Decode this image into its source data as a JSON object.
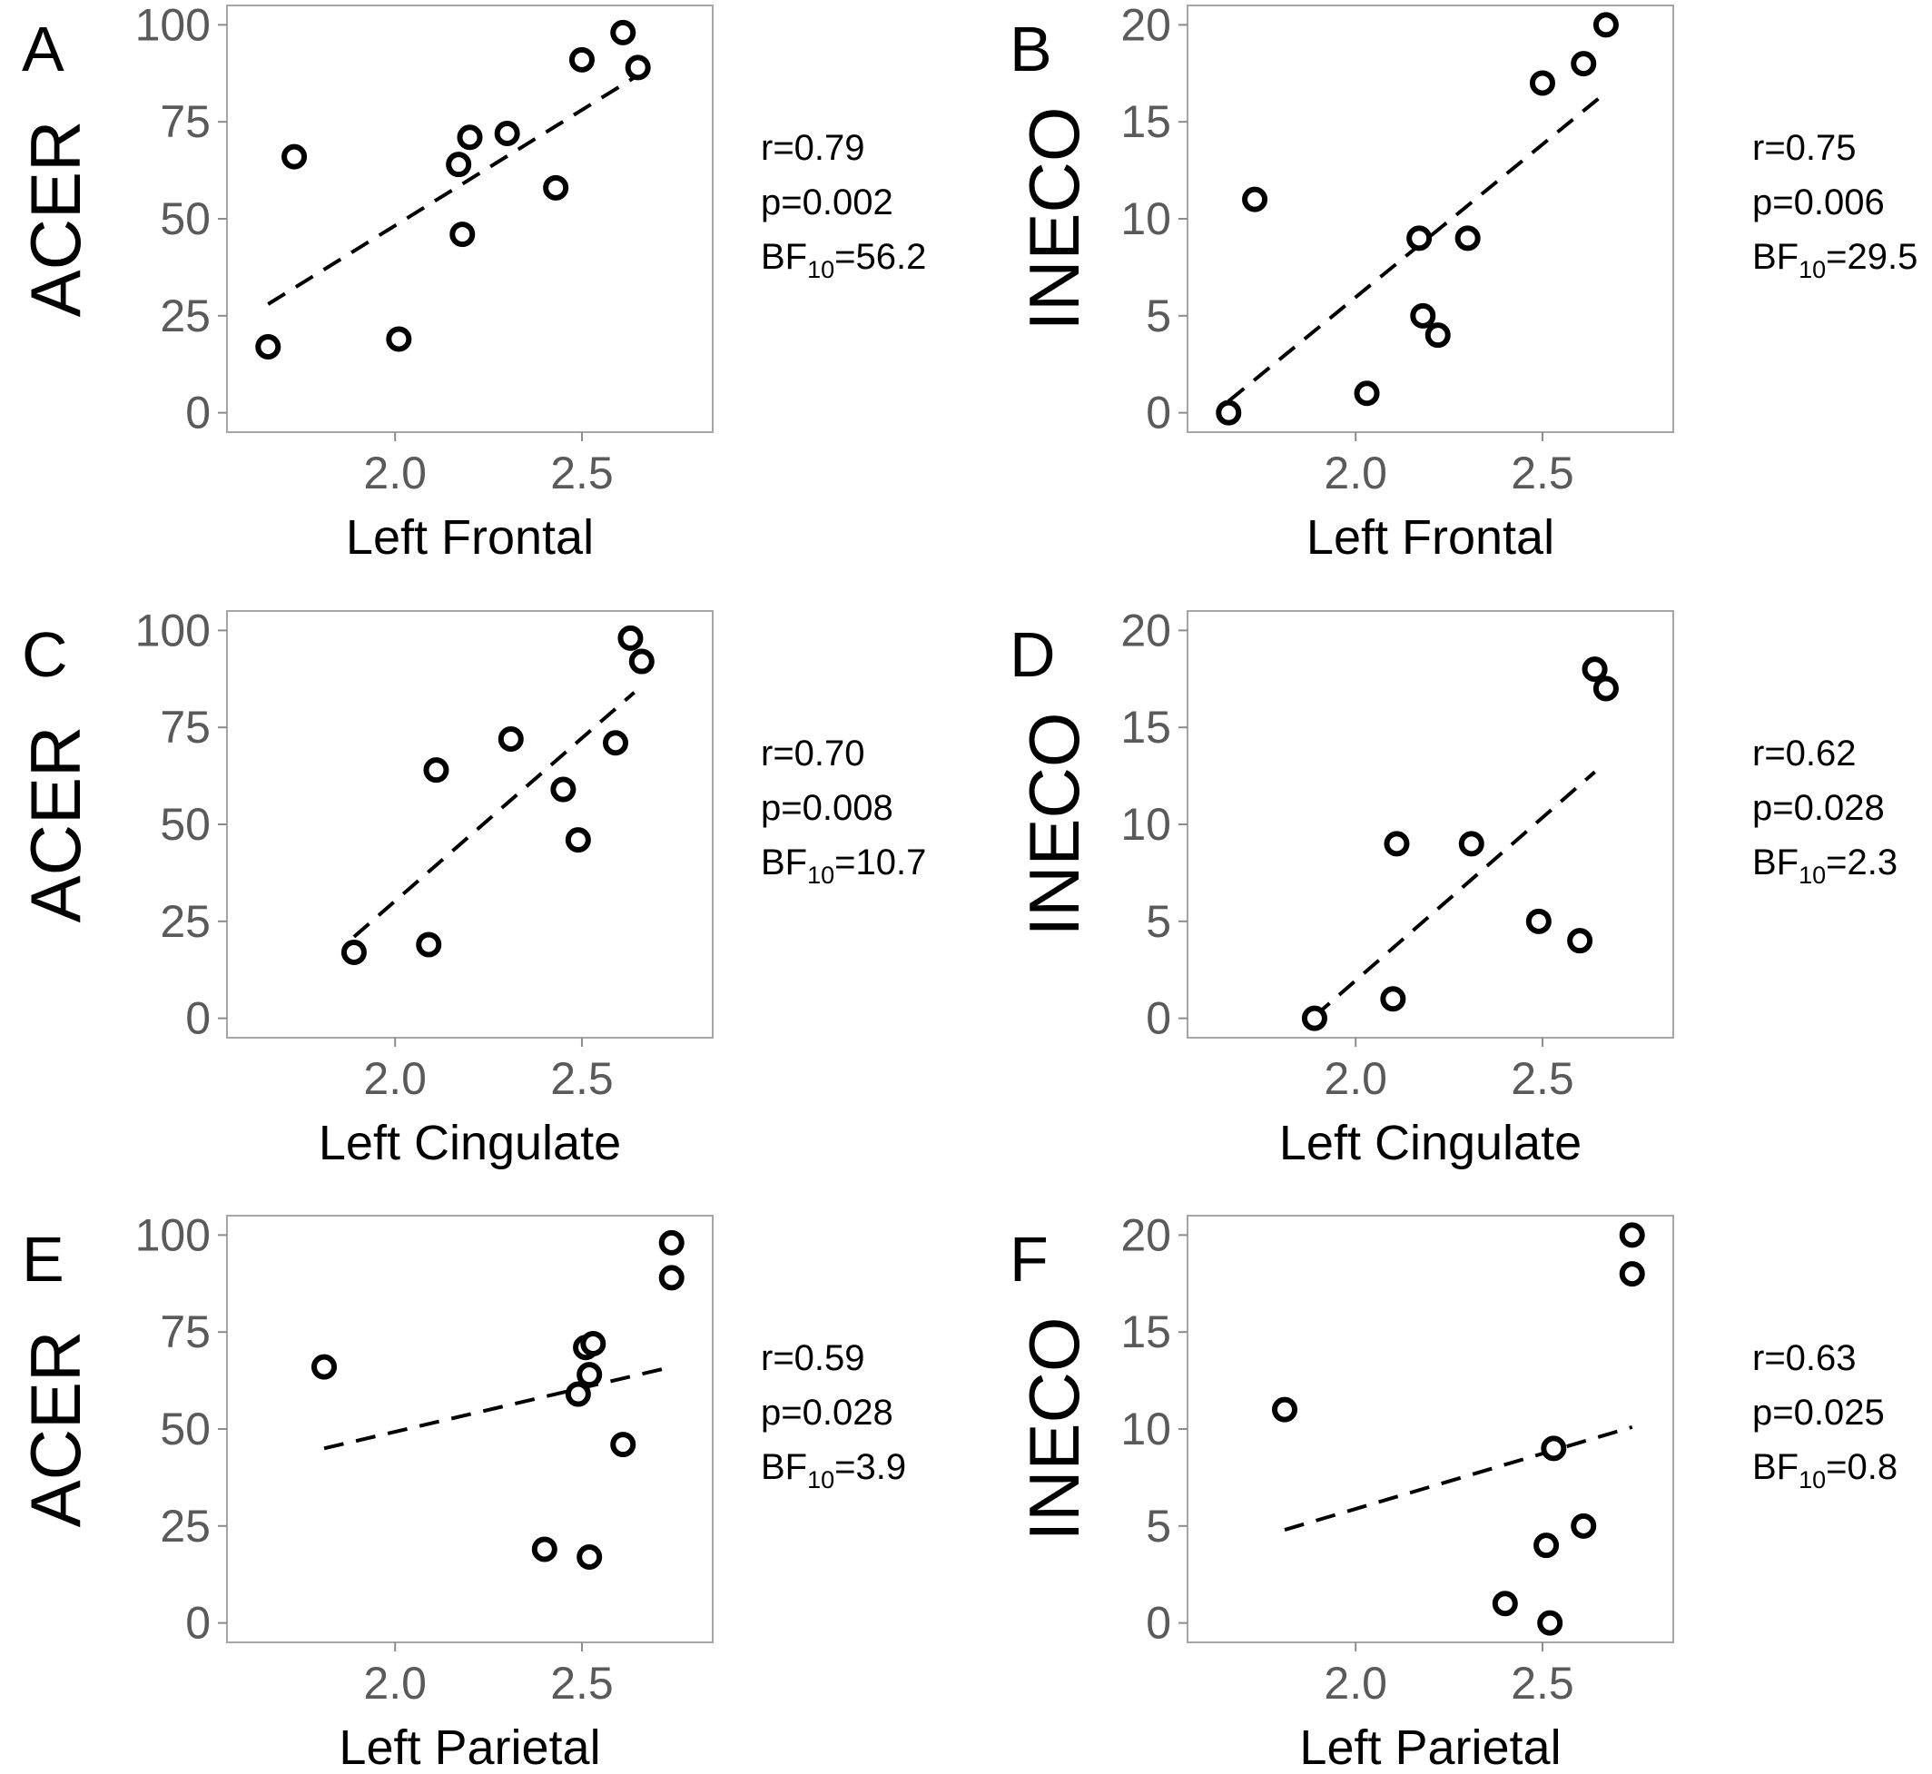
{
  "chart_data": [
    {
      "type": "scatter",
      "panel": "A",
      "ylabel": "ACER",
      "xlabel": "Left Frontal",
      "xlim": [
        1.55,
        2.85
      ],
      "ylim": [
        -5,
        105
      ],
      "xticks": [
        2.0,
        2.5
      ],
      "xtick_labels": [
        "2.0",
        "2.5"
      ],
      "yticks": [
        0,
        25,
        50,
        75,
        100
      ],
      "ytick_labels": [
        "0",
        "25",
        "50",
        "75",
        "100"
      ],
      "grid": false,
      "points": [
        {
          "x": 1.66,
          "y": 17
        },
        {
          "x": 1.73,
          "y": 66
        },
        {
          "x": 2.01,
          "y": 19
        },
        {
          "x": 2.17,
          "y": 64
        },
        {
          "x": 2.18,
          "y": 46
        },
        {
          "x": 2.2,
          "y": 71
        },
        {
          "x": 2.3,
          "y": 72
        },
        {
          "x": 2.43,
          "y": 58
        },
        {
          "x": 2.5,
          "y": 91
        },
        {
          "x": 2.61,
          "y": 98
        },
        {
          "x": 2.65,
          "y": 89
        }
      ],
      "fit": {
        "x": [
          1.66,
          2.65
        ],
        "y": [
          28,
          87
        ]
      },
      "stats": {
        "r": "r=0.79",
        "p": "p=0.002",
        "bf_prefix": "BF",
        "bf_sub": "10",
        "bf_value": "=56.2"
      }
    },
    {
      "type": "scatter",
      "panel": "B",
      "ylabel": "INECO",
      "xlabel": "Left Frontal",
      "xlim": [
        1.55,
        2.85
      ],
      "ylim": [
        -1,
        21
      ],
      "xticks": [
        2.0,
        2.5
      ],
      "xtick_labels": [
        "2.0",
        "2.5"
      ],
      "yticks": [
        0,
        5,
        10,
        15,
        20
      ],
      "ytick_labels": [
        "0",
        "5",
        "10",
        "15",
        "20"
      ],
      "grid": false,
      "points": [
        {
          "x": 1.66,
          "y": 0
        },
        {
          "x": 1.73,
          "y": 11
        },
        {
          "x": 2.03,
          "y": 1
        },
        {
          "x": 2.17,
          "y": 9
        },
        {
          "x": 2.18,
          "y": 5
        },
        {
          "x": 2.22,
          "y": 4
        },
        {
          "x": 2.3,
          "y": 9
        },
        {
          "x": 2.5,
          "y": 17
        },
        {
          "x": 2.61,
          "y": 18
        },
        {
          "x": 2.67,
          "y": 20
        }
      ],
      "fit": {
        "x": [
          1.66,
          2.65
        ],
        "y": [
          0.6,
          16.2
        ]
      },
      "stats": {
        "r": "r=0.75",
        "p": "p=0.006",
        "bf_prefix": "BF",
        "bf_sub": "10",
        "bf_value": "=29.5"
      }
    },
    {
      "type": "scatter",
      "panel": "C",
      "ylabel": "ACER",
      "xlabel": "Left Cingulate",
      "xlim": [
        1.55,
        2.85
      ],
      "ylim": [
        -5,
        105
      ],
      "xticks": [
        2.0,
        2.5
      ],
      "xtick_labels": [
        "2.0",
        "2.5"
      ],
      "yticks": [
        0,
        25,
        50,
        75,
        100
      ],
      "ytick_labels": [
        "0",
        "25",
        "50",
        "75",
        "100"
      ],
      "grid": false,
      "points": [
        {
          "x": 1.89,
          "y": 17
        },
        {
          "x": 2.09,
          "y": 19
        },
        {
          "x": 2.11,
          "y": 64
        },
        {
          "x": 2.31,
          "y": 72
        },
        {
          "x": 2.45,
          "y": 59
        },
        {
          "x": 2.49,
          "y": 46
        },
        {
          "x": 2.59,
          "y": 71
        },
        {
          "x": 2.63,
          "y": 98
        },
        {
          "x": 2.66,
          "y": 92
        }
      ],
      "fit": {
        "x": [
          1.89,
          2.64
        ],
        "y": [
          21,
          84
        ]
      },
      "stats": {
        "r": "r=0.70",
        "p": "p=0.008",
        "bf_prefix": "BF",
        "bf_sub": "10",
        "bf_value": "=10.7"
      }
    },
    {
      "type": "scatter",
      "panel": "D",
      "ylabel": "INECO",
      "xlabel": "Left Cingulate",
      "xlim": [
        1.55,
        2.85
      ],
      "ylim": [
        -1,
        21
      ],
      "xticks": [
        2.0,
        2.5
      ],
      "xtick_labels": [
        "2.0",
        "2.5"
      ],
      "yticks": [
        0,
        5,
        10,
        15,
        20
      ],
      "ytick_labels": [
        "0",
        "5",
        "10",
        "15",
        "20"
      ],
      "grid": false,
      "points": [
        {
          "x": 1.89,
          "y": 0
        },
        {
          "x": 2.1,
          "y": 1
        },
        {
          "x": 2.11,
          "y": 9
        },
        {
          "x": 2.31,
          "y": 9
        },
        {
          "x": 2.49,
          "y": 5
        },
        {
          "x": 2.6,
          "y": 4
        },
        {
          "x": 2.64,
          "y": 18
        },
        {
          "x": 2.67,
          "y": 17
        }
      ],
      "fit": {
        "x": [
          1.89,
          2.64
        ],
        "y": [
          0.1,
          12.7
        ]
      },
      "stats": {
        "r": "r=0.62",
        "p": "p=0.028",
        "bf_prefix": "BF",
        "bf_sub": "10",
        "bf_value": "=2.3"
      }
    },
    {
      "type": "scatter",
      "panel": "E",
      "ylabel": "ACER",
      "xlabel": "Left Parietal",
      "xlim": [
        1.55,
        2.85
      ],
      "ylim": [
        -5,
        105
      ],
      "xticks": [
        2.0,
        2.5
      ],
      "xtick_labels": [
        "2.0",
        "2.5"
      ],
      "yticks": [
        0,
        25,
        50,
        75,
        100
      ],
      "ytick_labels": [
        "0",
        "25",
        "50",
        "75",
        "100"
      ],
      "grid": false,
      "points": [
        {
          "x": 1.81,
          "y": 66
        },
        {
          "x": 2.4,
          "y": 19
        },
        {
          "x": 2.49,
          "y": 59
        },
        {
          "x": 2.51,
          "y": 71
        },
        {
          "x": 2.53,
          "y": 72
        },
        {
          "x": 2.52,
          "y": 64
        },
        {
          "x": 2.52,
          "y": 17
        },
        {
          "x": 2.61,
          "y": 46
        },
        {
          "x": 2.74,
          "y": 98
        },
        {
          "x": 2.74,
          "y": 89
        }
      ],
      "fit": {
        "x": [
          1.81,
          2.74
        ],
        "y": [
          45,
          66
        ]
      },
      "stats": {
        "r": "r=0.59",
        "p": "p=0.028",
        "bf_prefix": "BF",
        "bf_sub": "10",
        "bf_value": "=3.9"
      }
    },
    {
      "type": "scatter",
      "panel": "F",
      "ylabel": "INECO",
      "xlabel": "Left Parietal",
      "xlim": [
        1.55,
        2.85
      ],
      "ylim": [
        -1,
        21
      ],
      "xticks": [
        2.0,
        2.5
      ],
      "xtick_labels": [
        "2.0",
        "2.5"
      ],
      "yticks": [
        0,
        5,
        10,
        15,
        20
      ],
      "ytick_labels": [
        "0",
        "5",
        "10",
        "15",
        "20"
      ],
      "grid": false,
      "points": [
        {
          "x": 1.81,
          "y": 11
        },
        {
          "x": 2.4,
          "y": 1
        },
        {
          "x": 2.51,
          "y": 4
        },
        {
          "x": 2.52,
          "y": 0
        },
        {
          "x": 2.53,
          "y": 9
        },
        {
          "x": 2.61,
          "y": 5
        },
        {
          "x": 2.74,
          "y": 20
        },
        {
          "x": 2.74,
          "y": 18
        }
      ],
      "fit": {
        "x": [
          1.81,
          2.74
        ],
        "y": [
          4.8,
          10.1
        ]
      },
      "stats": {
        "r": "r=0.63",
        "p": "p=0.025",
        "bf_prefix": "BF",
        "bf_sub": "10",
        "bf_value": "=0.8"
      }
    }
  ]
}
